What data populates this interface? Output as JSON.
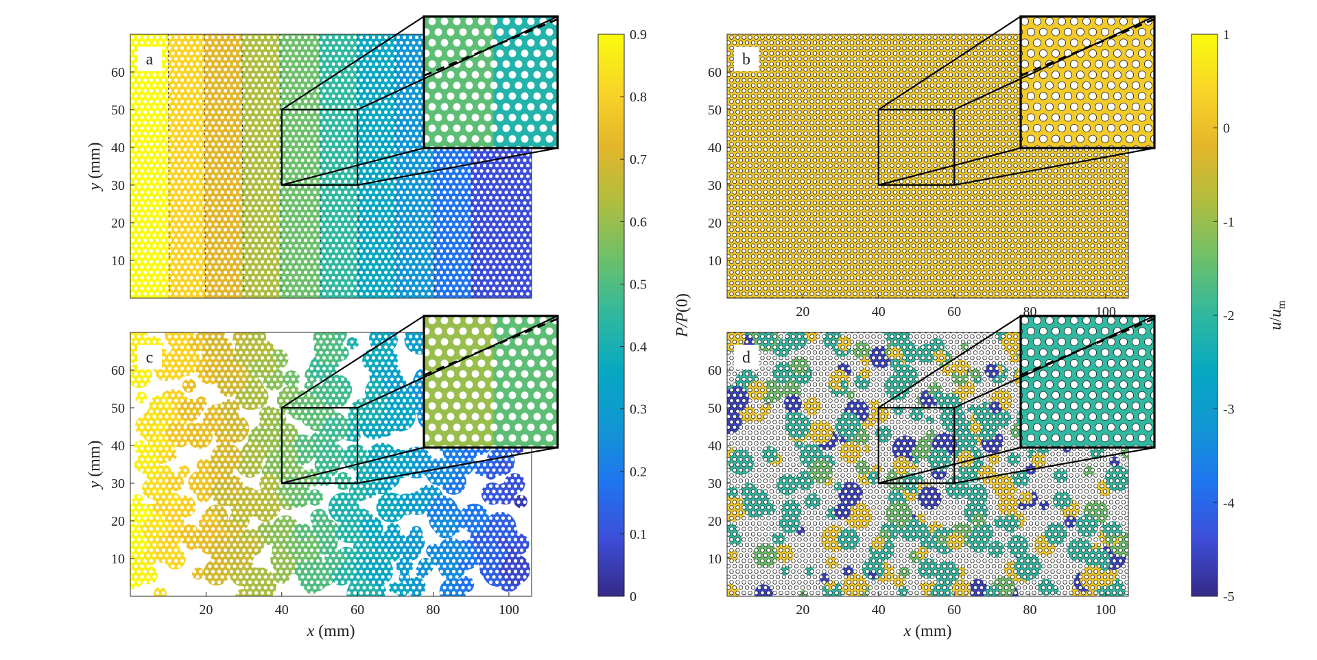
{
  "figure_note": "Four-panel map figure with two colorbars",
  "chart_data": [
    {
      "type": "heatmap",
      "panel_label": "a",
      "xlabel_var": "",
      "xlabel_unit": "",
      "ylabel_var": "y",
      "ylabel_unit": " (mm)",
      "xlim": [
        0,
        106
      ],
      "ylim": [
        0,
        70
      ],
      "xticks": [],
      "yticks": [
        10,
        20,
        30,
        40,
        50,
        60
      ],
      "colorbar": "cb1",
      "pattern": "bands",
      "band_edges_x": [
        0,
        10,
        19.5,
        29.5,
        39.5,
        50,
        60,
        70,
        80,
        90,
        106
      ],
      "band_values": [
        0.9,
        0.81,
        0.72,
        0.63,
        0.54,
        0.45,
        0.36,
        0.27,
        0.18,
        0.09
      ],
      "inset_source": {
        "x": [
          40,
          60
        ],
        "y": [
          30,
          50
        ]
      },
      "inset_color_left": 0.52,
      "inset_color_right": 0.42
    },
    {
      "type": "heatmap",
      "panel_label": "b",
      "xlabel_var": "",
      "xlabel_unit": "",
      "ylabel_var": "",
      "ylabel_unit": "",
      "xlim": [
        0,
        106
      ],
      "ylim": [
        0,
        70
      ],
      "xticks": [
        20,
        40,
        60,
        80,
        100
      ],
      "yticks": [
        10,
        20,
        30,
        40,
        50,
        60
      ],
      "colorbar": "cb2",
      "pattern": "uniform",
      "uniform_value": 0.2,
      "inset_source": {
        "x": [
          40,
          60
        ],
        "y": [
          30,
          50
        ]
      },
      "inset_color_left": 0.2,
      "inset_color_right": 0.2
    },
    {
      "type": "heatmap",
      "panel_label": "c",
      "xlabel_var": "x",
      "xlabel_unit": " (mm)",
      "ylabel_var": "y",
      "ylabel_unit": " (mm)",
      "xlim": [
        0,
        106
      ],
      "ylim": [
        0,
        70
      ],
      "xticks": [
        20,
        40,
        60,
        80,
        100
      ],
      "yticks": [
        10,
        20,
        30,
        40,
        50,
        60
      ],
      "colorbar": "cb1",
      "pattern": "patches",
      "value_at_x0": 0.9,
      "value_at_x106": 0.05,
      "inset_source": {
        "x": [
          40,
          60
        ],
        "y": [
          30,
          50
        ]
      },
      "inset_color_left": 0.6,
      "inset_color_right": 0.52
    },
    {
      "type": "heatmap",
      "panel_label": "d",
      "xlabel_var": "x",
      "xlabel_unit": " (mm)",
      "ylabel_var": "",
      "ylabel_unit": "",
      "xlim": [
        0,
        106
      ],
      "ylim": [
        0,
        70
      ],
      "xticks": [
        20,
        40,
        60,
        80,
        100
      ],
      "yticks": [
        10,
        20,
        30,
        40,
        50,
        60
      ],
      "colorbar": "cb2",
      "pattern": "mixed",
      "mixed_values": [
        0.2,
        0.2,
        -2,
        -2,
        -2,
        -4.6,
        -1.4
      ],
      "inset_source": {
        "x": [
          40,
          60
        ],
        "y": [
          30,
          50
        ]
      },
      "inset_color_left": -2,
      "inset_color_right": -2
    }
  ],
  "colorbars": {
    "cb1": {
      "label_var": "P/P",
      "label_rest": "(0)",
      "range": [
        0,
        0.9
      ],
      "ticks": [
        "0",
        "0.1",
        "0.2",
        "0.3",
        "0.4",
        "0.5",
        "0.6",
        "0.7",
        "0.8",
        "0.9"
      ],
      "tick_values": [
        0,
        0.1,
        0.2,
        0.3,
        0.4,
        0.5,
        0.6,
        0.7,
        0.8,
        0.9
      ],
      "colormap": "parula"
    },
    "cb2": {
      "label_var_u": "u",
      "label_slash": "/",
      "label_var_um": "u",
      "label_sub": "m",
      "range": [
        -5,
        1
      ],
      "ticks": [
        "-5",
        "-4",
        "-3",
        "-2",
        "-1",
        "0",
        "1"
      ],
      "tick_values": [
        -5,
        -4,
        -3,
        -2,
        -1,
        0,
        1
      ],
      "colormap": "parula"
    }
  },
  "colors": {
    "parula": [
      "#352a87",
      "#3d4dd8",
      "#1f74f0",
      "#1296d4",
      "#06a8c2",
      "#30b8a0",
      "#6cc06a",
      "#afbd40",
      "#e3b62a",
      "#f9d428",
      "#f9fb0e"
    ],
    "axis": "#262626",
    "inset_frame": "#000000",
    "pore": "#ffffff",
    "menisci": "#1a1a1a"
  }
}
